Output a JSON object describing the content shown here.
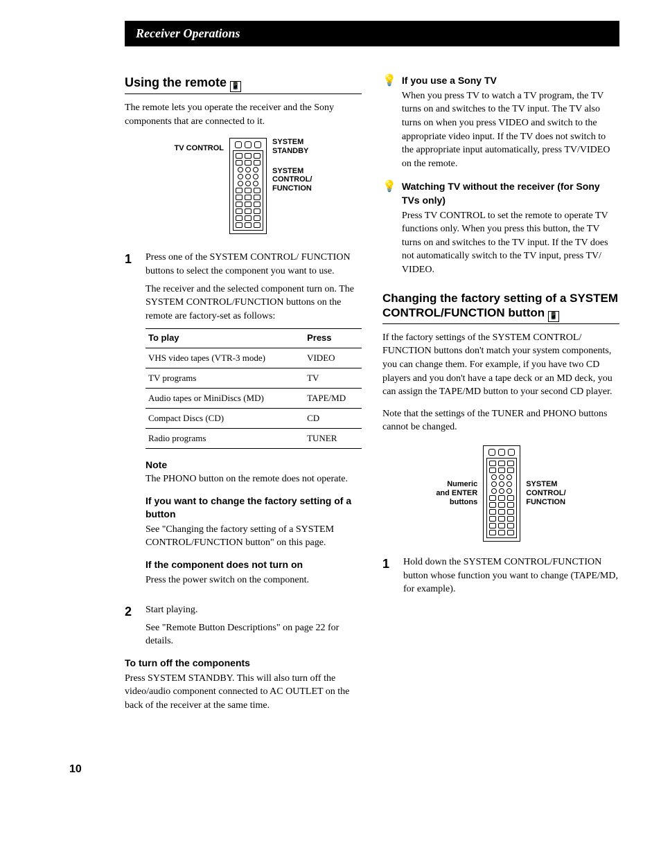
{
  "header": {
    "title": "Receiver Operations"
  },
  "left": {
    "section_title": "Using the remote",
    "intro": "The remote lets you operate the receiver and the Sony components that are connected to it.",
    "fig": {
      "left_label": "TV CONTROL",
      "right_label_1": "SYSTEM\nSTANDBY",
      "right_label_2": "SYSTEM\nCONTROL/\nFUNCTION"
    },
    "step1": {
      "num": "1",
      "text": "Press one of the SYSTEM CONTROL/ FUNCTION buttons to select the component you want to use.",
      "sub": "The receiver and the selected component turn on. The SYSTEM CONTROL/FUNCTION buttons on the remote are factory-set as follows:"
    },
    "table": {
      "head_left": "To play",
      "head_right": "Press",
      "rows": [
        {
          "l": "VHS video tapes  (VTR-3 mode)",
          "r": "VIDEO"
        },
        {
          "l": "TV programs",
          "r": "TV"
        },
        {
          "l": "Audio tapes or MiniDiscs (MD)",
          "r": "TAPE/MD"
        },
        {
          "l": "Compact Discs (CD)",
          "r": "CD"
        },
        {
          "l": "Radio programs",
          "r": "TUNER"
        }
      ]
    },
    "note_head": "Note",
    "note_body": "The PHONO button on the remote does not operate.",
    "change_head": "If you want to change the factory setting of a button",
    "change_body": "See \"Changing the factory setting of a SYSTEM CONTROL/FUNCTION button\" on this page.",
    "noon_head": "If the component does not turn on",
    "noon_body": "Press the power switch on the component.",
    "step2": {
      "num": "2",
      "text": "Start playing.",
      "sub": "See \"Remote Button Descriptions\" on page 22 for details."
    },
    "off_head": "To turn off the components",
    "off_body": "Press SYSTEM STANDBY. This will also turn off the video/audio component connected to AC OUTLET on the back of the receiver at the same time."
  },
  "right": {
    "tip1_head": "If you use a Sony TV",
    "tip1_body": "When you press TV to watch a TV program, the TV turns on and switches to the TV input. The TV also turns on when you press VIDEO and switch to the appropriate video input. If the TV does not switch to the appropriate input automatically, press TV/VIDEO on the remote.",
    "tip2_head": "Watching TV without the receiver (for Sony TVs only)",
    "tip2_body": "Press TV CONTROL to set the remote to operate TV functions only. When you press this button, the TV turns on and switches to the TV input. If the TV does not automatically switch to the TV input, press TV/ VIDEO.",
    "section2_title": "Changing the factory setting of a SYSTEM CONTROL/FUNCTION button",
    "section2_p1": "If the factory settings of the SYSTEM CONTROL/ FUNCTION buttons don't match your system components, you can change them. For example, if you have two CD players and you don't have a tape deck or an MD deck, you can assign the TAPE/MD button to your second CD player.",
    "section2_p2": "Note that the settings of the TUNER and PHONO buttons cannot be changed.",
    "fig2": {
      "left_label": "Numeric\nand ENTER\nbuttons",
      "right_label": "SYSTEM\nCONTROL/\nFUNCTION"
    },
    "step1": {
      "num": "1",
      "text": "Hold down the SYSTEM CONTROL/FUNCTION button whose function you want to change (TAPE/MD, for example)."
    }
  },
  "page_number": "10"
}
